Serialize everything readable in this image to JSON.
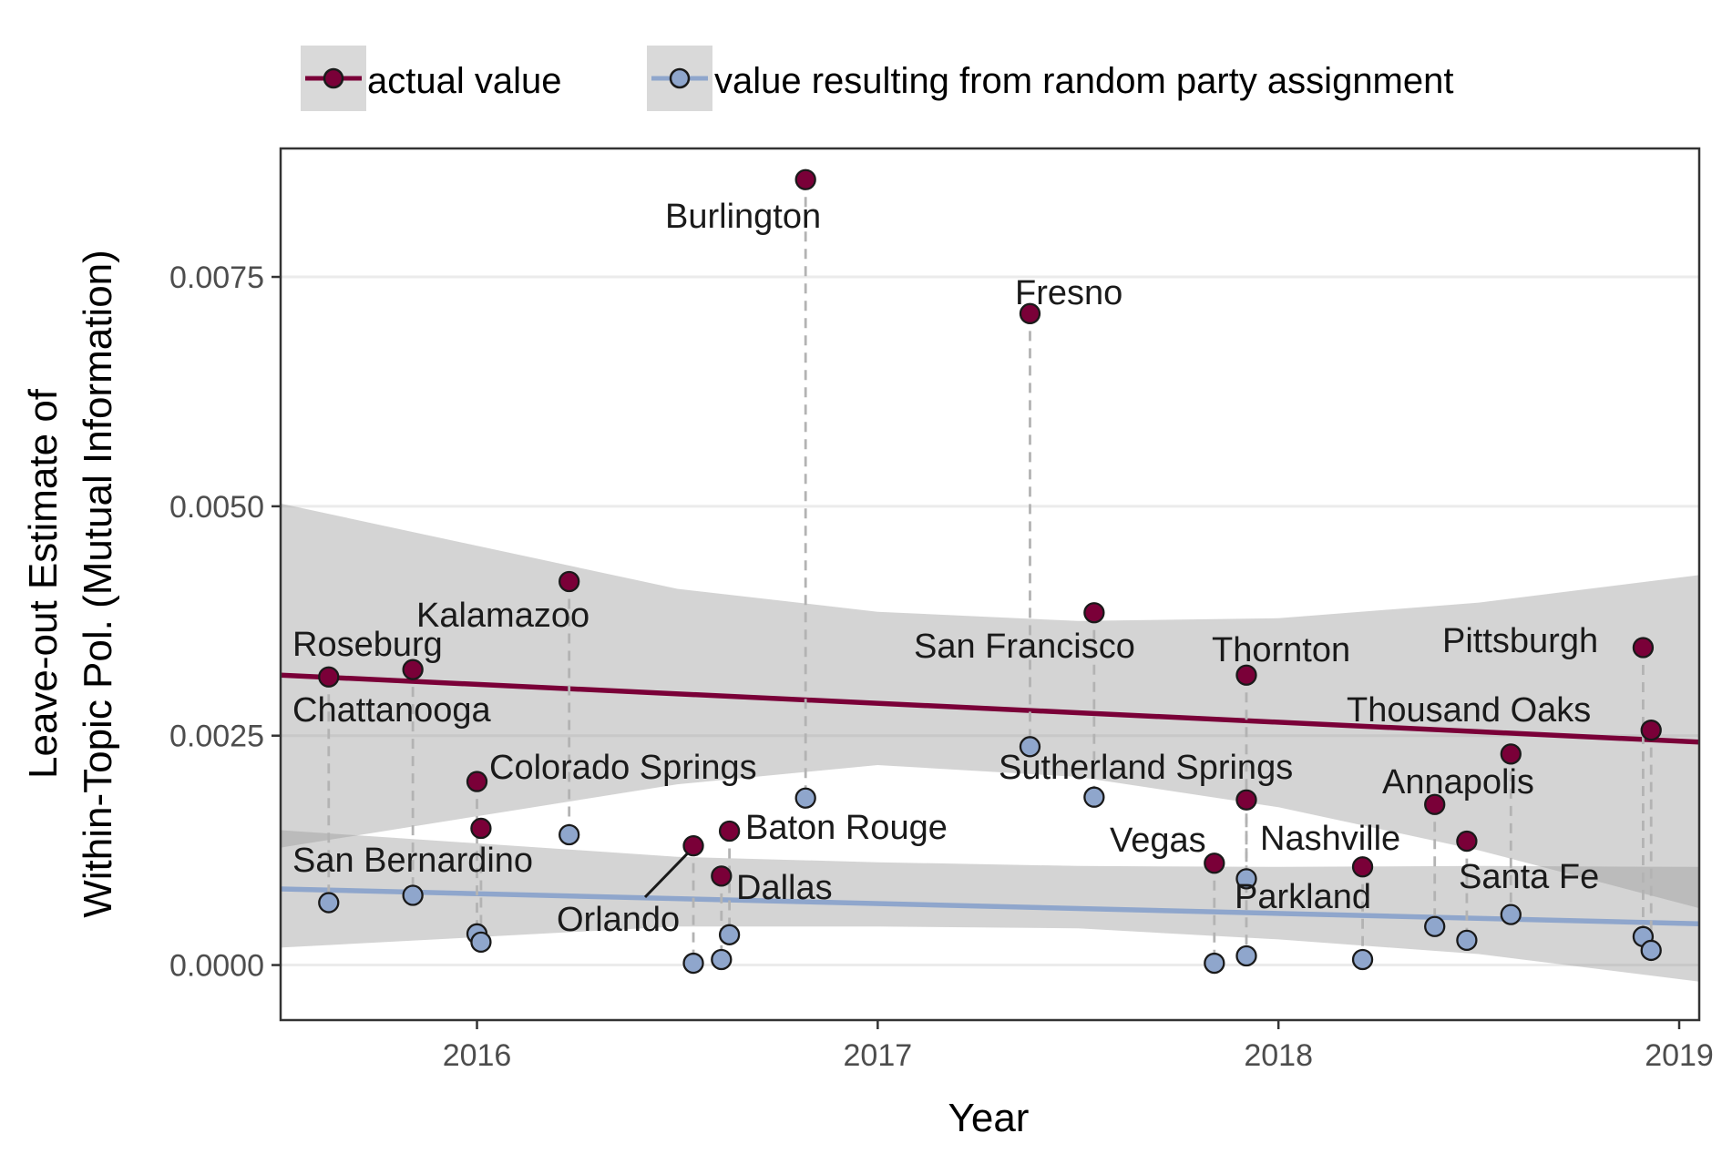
{
  "chart_data": {
    "type": "scatter",
    "xlabel": "Year",
    "ylabel_line1": "Leave-out Estimate of",
    "ylabel_line2": "Within-Topic Pol. (Mutual Information)",
    "x_ticks": [
      {
        "value": 2016,
        "label": "2016"
      },
      {
        "value": 2017,
        "label": "2017"
      },
      {
        "value": 2018,
        "label": "2018"
      },
      {
        "value": 2019,
        "label": "2019"
      }
    ],
    "y_ticks": [
      {
        "value": 0.0,
        "label": "0.0000"
      },
      {
        "value": 0.0025,
        "label": "0.0025"
      },
      {
        "value": 0.005,
        "label": "0.0050"
      },
      {
        "value": 0.0075,
        "label": "0.0075"
      }
    ],
    "xlim": [
      2015.51,
      2019.05
    ],
    "ylim": [
      -0.0006,
      0.0089
    ],
    "grid": true,
    "legend_position": "top",
    "series": [
      {
        "name": "actual value",
        "color": "#7a0038",
        "trend": {
          "x": [
            2015.51,
            2019.05
          ],
          "y": [
            0.00316,
            0.00243
          ]
        },
        "band": {
          "x": [
            2015.51,
            2016.5,
            2017.0,
            2017.5,
            2018.0,
            2018.5,
            2019.05
          ],
          "upper": [
            0.00503,
            0.0041,
            0.00385,
            0.00375,
            0.00378,
            0.00395,
            0.00425
          ],
          "lower": [
            0.00128,
            0.00197,
            0.00218,
            0.00205,
            0.00172,
            0.00125,
            0.00062
          ]
        }
      },
      {
        "name": "value resulting from random party assignment",
        "color": "#8fa6cc",
        "trend": {
          "x": [
            2015.51,
            2019.05
          ],
          "y": [
            0.00083,
            0.00045
          ]
        },
        "band": {
          "x": [
            2015.51,
            2016.5,
            2017.0,
            2017.5,
            2018.0,
            2018.5,
            2019.05
          ],
          "upper": [
            0.00147,
            0.00118,
            0.00112,
            0.00108,
            0.00107,
            0.00108,
            0.00107
          ],
          "lower": [
            0.00019,
            0.00042,
            0.00042,
            0.0004,
            0.00028,
            0.00012,
            -0.00018
          ]
        }
      }
    ],
    "events": [
      {
        "city": "Roseburg",
        "x": 2015.63,
        "actual": 0.00314,
        "random": 0.00068
      },
      {
        "city": "Chattanooga",
        "x": 2015.84,
        "actual": 0.00322,
        "random": 0.00076
      },
      {
        "city": "San Bernardino",
        "x": 2016.0,
        "actual": 0.002,
        "random": 0.00034
      },
      {
        "city": "Colorado Springs",
        "x": 2016.01,
        "actual": 0.00149,
        "random": 0.00025
      },
      {
        "city": "Kalamazoo",
        "x": 2016.23,
        "actual": 0.00418,
        "random": 0.00142
      },
      {
        "city": "Orlando",
        "x": 2016.54,
        "actual": 0.0013,
        "random": 2e-05
      },
      {
        "city": "Dallas",
        "x": 2016.61,
        "actual": 0.00097,
        "random": 6e-05
      },
      {
        "city": "Baton Rouge",
        "x": 2016.63,
        "actual": 0.00146,
        "random": 0.00033
      },
      {
        "city": "Burlington",
        "x": 2016.82,
        "actual": 0.00856,
        "random": 0.00182
      },
      {
        "city": "Fresno",
        "x": 2017.38,
        "actual": 0.0071,
        "random": 0.00238
      },
      {
        "city": "San Francisco",
        "x": 2017.54,
        "actual": 0.00384,
        "random": 0.00183
      },
      {
        "city": "Vegas",
        "x": 2017.84,
        "actual": 0.00111,
        "random": 2e-05
      },
      {
        "city": "Parkland",
        "x": 2017.92,
        "actual": 0.0018,
        "random": 0.00094
      },
      {
        "city": "Thornton",
        "x": 2017.92,
        "actual": 0.00316,
        "random": 0.0001
      },
      {
        "city": "Nashville",
        "x": 2018.21,
        "actual": 0.00107,
        "random": 6e-05
      },
      {
        "city": "Annapolis",
        "x": 2018.39,
        "actual": 0.00175,
        "random": 0.00042
      },
      {
        "city": "Santa Fe",
        "x": 2018.47,
        "actual": 0.00135,
        "random": 0.00027
      },
      {
        "city": "Sutherland Springs",
        "x": 2018.58,
        "actual": 0.0023,
        "random": 0.00055
      },
      {
        "city": "Pittsburgh",
        "x": 2018.91,
        "actual": 0.00346,
        "random": 0.00031
      },
      {
        "city": "Thousand Oaks",
        "x": 2018.93,
        "actual": 0.00256,
        "random": 0.00016
      }
    ]
  }
}
